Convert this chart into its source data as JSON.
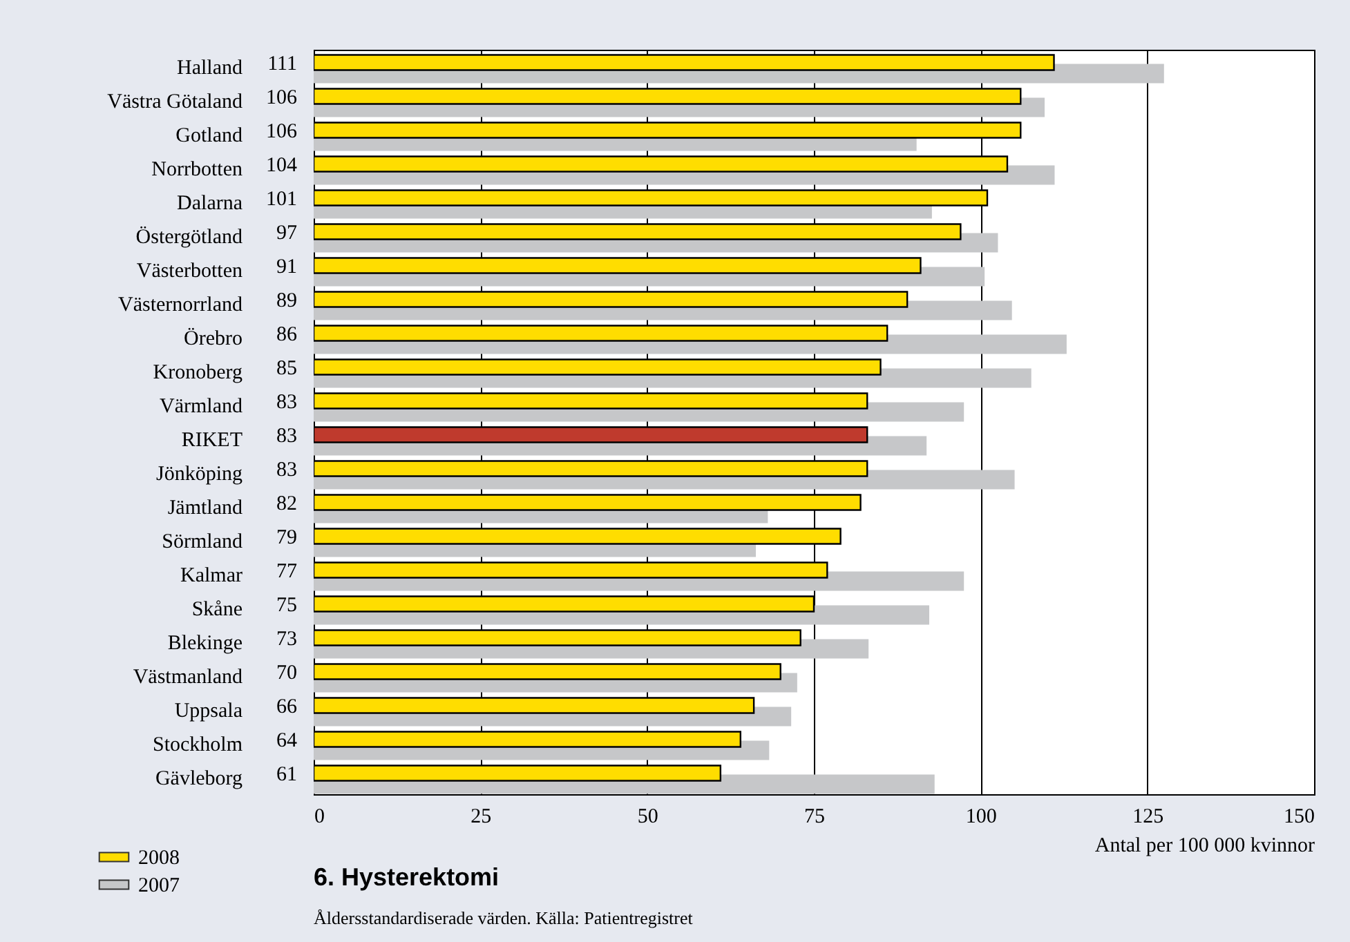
{
  "chart_data": {
    "type": "bar",
    "orientation": "horizontal",
    "title": "6.  Hysterektomi",
    "xlabel": "Antal per 100 000 kvinnor",
    "annotations": [
      "Åldersstandardiserade värden.  Källa: Patientregistret"
    ],
    "categories": [
      "Halland",
      "Västra Götaland",
      "Gotland",
      "Norrbotten",
      "Dalarna",
      "Östergötland",
      "Västerbotten",
      "Västernorrland",
      "Örebro",
      "Kronoberg",
      "Värmland",
      "RIKET",
      "Jönköping",
      "Jämtland",
      "Sörmland",
      "Kalmar",
      "Skåne",
      "Blekinge",
      "Västmanland",
      "Uppsala",
      "Stockholm",
      "Gävleborg"
    ],
    "series": [
      {
        "name": "2008",
        "color": "#ffdd00",
        "colors": [
          "#ffdd00",
          "#ffdd00",
          "#ffdd00",
          "#ffdd00",
          "#ffdd00",
          "#ffdd00",
          "#ffdd00",
          "#ffdd00",
          "#ffdd00",
          "#ffdd00",
          "#ffdd00",
          "#bf3a2d",
          "#ffdd00",
          "#ffdd00",
          "#ffdd00",
          "#ffdd00",
          "#ffdd00",
          "#ffdd00",
          "#ffdd00",
          "#ffdd00",
          "#ffdd00",
          "#ffdd00"
        ],
        "values": [
          111,
          106,
          106,
          104,
          101,
          97,
          91,
          89,
          86,
          85,
          83,
          83,
          83,
          82,
          79,
          77,
          75,
          73,
          70,
          66,
          64,
          61
        ],
        "value_labels": [
          "111",
          "106",
          "106",
          "104",
          "101",
          "97",
          "91",
          "89",
          "86",
          "85",
          "83",
          "83",
          "83",
          "82",
          "79",
          "77",
          "75",
          "73",
          "70",
          "66",
          "64",
          "61"
        ]
      },
      {
        "name": "2007",
        "color": "#c6c7c9",
        "values": [
          127.5,
          109.6,
          90.4,
          111.1,
          92.7,
          102.6,
          100.6,
          104.7,
          112.9,
          107.6,
          97.5,
          91.9,
          105.1,
          68.1,
          66.3,
          97.5,
          92.3,
          83.2,
          72.5,
          71.6,
          68.3,
          93.1
        ]
      }
    ],
    "xlim": [
      0,
      150
    ],
    "xticks": [
      0,
      25,
      50,
      75,
      100,
      125,
      150
    ],
    "grid": "x",
    "legend": "bottom left"
  }
}
